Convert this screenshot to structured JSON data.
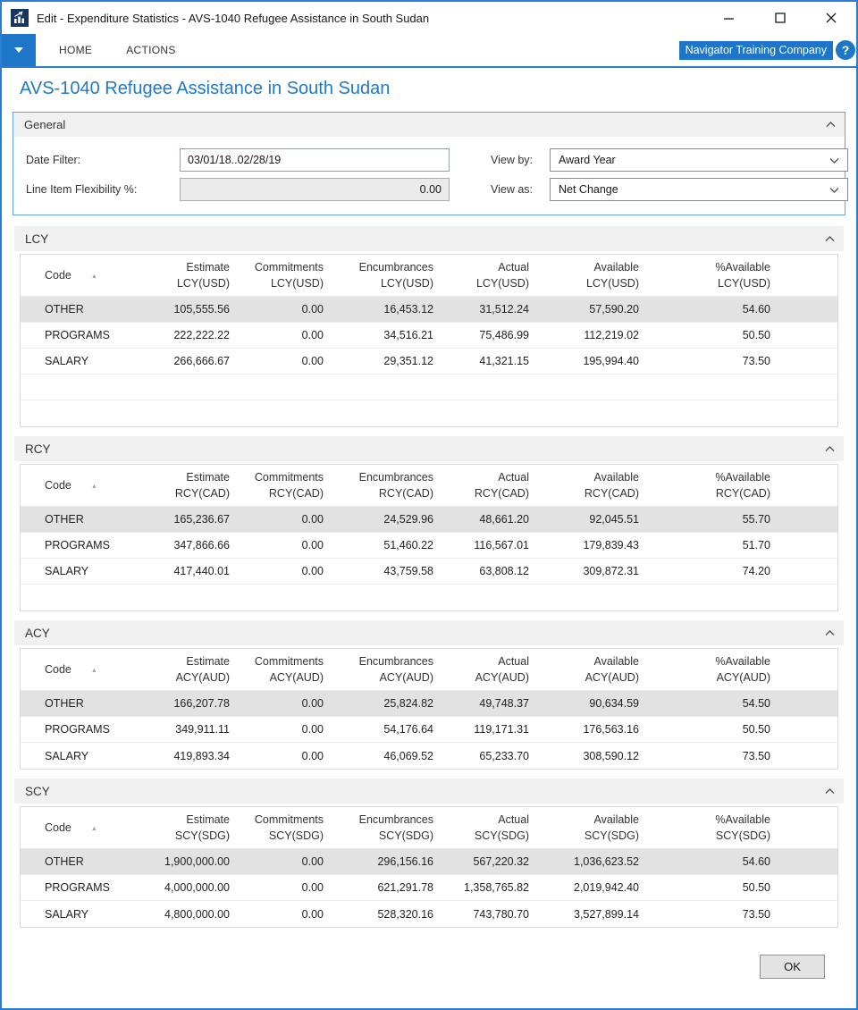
{
  "window": {
    "title": "Edit - Expenditure Statistics - AVS-1040 Refugee Assistance in South Sudan"
  },
  "ribbon": {
    "tabs": [
      {
        "label": "HOME"
      },
      {
        "label": "ACTIONS"
      }
    ],
    "company_badge": "Navigator Training Company",
    "help_glyph": "?"
  },
  "page": {
    "title": "AVS-1040 Refugee Assistance in South Sudan"
  },
  "general": {
    "header": "General",
    "date_filter_label": "Date Filter:",
    "date_filter_value": "03/01/18..02/28/19",
    "flexibility_label": "Line Item Flexibility %:",
    "flexibility_value": "0.00",
    "view_by_label": "View by:",
    "view_by_value": "Award Year",
    "view_as_label": "View as:",
    "view_as_value": "Net Change"
  },
  "icons": {
    "sort_ascending": "▲"
  },
  "sections": [
    {
      "name": "LCY",
      "code_header": "Code",
      "columns": [
        {
          "label": "Estimate",
          "sub": "LCY(USD)"
        },
        {
          "label": "Commitments",
          "sub": "LCY(USD)"
        },
        {
          "label": "Encumbrances",
          "sub": "LCY(USD)"
        },
        {
          "label": "Actual",
          "sub": "LCY(USD)"
        },
        {
          "label": "Available",
          "sub": "LCY(USD)"
        },
        {
          "label": "%Available",
          "sub": "LCY(USD)"
        }
      ],
      "rows": [
        {
          "code": "OTHER",
          "selected": true,
          "values": [
            "105,555.56",
            "0.00",
            "16,453.12",
            "31,512.24",
            "57,590.20",
            "54.60"
          ]
        },
        {
          "code": "PROGRAMS",
          "selected": false,
          "values": [
            "222,222.22",
            "0.00",
            "34,516.21",
            "75,486.99",
            "112,219.02",
            "50.50"
          ]
        },
        {
          "code": "SALARY",
          "selected": false,
          "values": [
            "266,666.67",
            "0.00",
            "29,351.12",
            "41,321.15",
            "195,994.40",
            "73.50"
          ]
        }
      ],
      "empty_rows": 2
    },
    {
      "name": "RCY",
      "code_header": "Code",
      "columns": [
        {
          "label": "Estimate",
          "sub": "RCY(CAD)"
        },
        {
          "label": "Commitments",
          "sub": "RCY(CAD)"
        },
        {
          "label": "Encumbrances",
          "sub": "RCY(CAD)"
        },
        {
          "label": "Actual",
          "sub": "RCY(CAD)"
        },
        {
          "label": "Available",
          "sub": "RCY(CAD)"
        },
        {
          "label": "%Available",
          "sub": "RCY(CAD)"
        }
      ],
      "rows": [
        {
          "code": "OTHER",
          "selected": true,
          "values": [
            "165,236.67",
            "0.00",
            "24,529.96",
            "48,661.20",
            "92,045.51",
            "55.70"
          ]
        },
        {
          "code": "PROGRAMS",
          "selected": false,
          "values": [
            "347,866.66",
            "0.00",
            "51,460.22",
            "116,567.01",
            "179,839.43",
            "51.70"
          ]
        },
        {
          "code": "SALARY",
          "selected": false,
          "values": [
            "417,440.01",
            "0.00",
            "43,759.58",
            "63,808.12",
            "309,872.31",
            "74.20"
          ]
        }
      ],
      "empty_rows": 1
    },
    {
      "name": "ACY",
      "code_header": "Code",
      "columns": [
        {
          "label": "Estimate",
          "sub": "ACY(AUD)"
        },
        {
          "label": "Commitments",
          "sub": "ACY(AUD)"
        },
        {
          "label": "Encumbrances",
          "sub": "ACY(AUD)"
        },
        {
          "label": "Actual",
          "sub": "ACY(AUD)"
        },
        {
          "label": "Available",
          "sub": "ACY(AUD)"
        },
        {
          "label": "%Available",
          "sub": "ACY(AUD)"
        }
      ],
      "rows": [
        {
          "code": "OTHER",
          "selected": true,
          "values": [
            "166,207.78",
            "0.00",
            "25,824.82",
            "49,748.37",
            "90,634.59",
            "54.50"
          ]
        },
        {
          "code": "PROGRAMS",
          "selected": false,
          "values": [
            "349,911.11",
            "0.00",
            "54,176.64",
            "119,171.31",
            "176,563.16",
            "50.50"
          ]
        },
        {
          "code": "SALARY",
          "selected": false,
          "values": [
            "419,893.34",
            "0.00",
            "46,069.52",
            "65,233.70",
            "308,590.12",
            "73.50"
          ]
        }
      ],
      "empty_rows": 0
    },
    {
      "name": "SCY",
      "code_header": "Code",
      "columns": [
        {
          "label": "Estimate",
          "sub": "SCY(SDG)"
        },
        {
          "label": "Commitments",
          "sub": "SCY(SDG)"
        },
        {
          "label": "Encumbrances",
          "sub": "SCY(SDG)"
        },
        {
          "label": "Actual",
          "sub": "SCY(SDG)"
        },
        {
          "label": "Available",
          "sub": "SCY(SDG)"
        },
        {
          "label": "%Available",
          "sub": "SCY(SDG)"
        }
      ],
      "rows": [
        {
          "code": "OTHER",
          "selected": true,
          "values": [
            "1,900,000.00",
            "0.00",
            "296,156.16",
            "567,220.32",
            "1,036,623.52",
            "54.60"
          ]
        },
        {
          "code": "PROGRAMS",
          "selected": false,
          "values": [
            "4,000,000.00",
            "0.00",
            "621,291.78",
            "1,358,765.82",
            "2,019,942.40",
            "50.50"
          ]
        },
        {
          "code": "SALARY",
          "selected": false,
          "values": [
            "4,800,000.00",
            "0.00",
            "528,320.16",
            "743,780.70",
            "3,527,899.14",
            "73.50"
          ]
        }
      ],
      "empty_rows": 0
    }
  ],
  "footer": {
    "ok_label": "OK"
  },
  "colors": {
    "accent_blue": "#1e76c8",
    "window_border": "#2b7cd3",
    "page_title_blue": "#1e7ac9",
    "selected_row": "#e2e2e2",
    "section_header_bg": "#f1f1f1"
  }
}
